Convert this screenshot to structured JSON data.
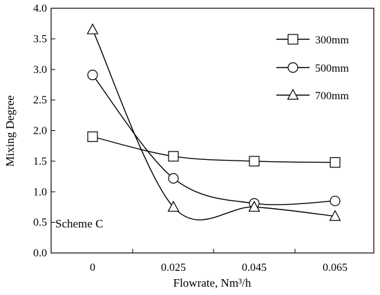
{
  "chart_data": {
    "type": "line",
    "xlabel": "Flowrate, Nm³/h",
    "ylabel": "Mixing Degree",
    "categories": [
      "0",
      "0.025",
      "0.045",
      "0.065"
    ],
    "ylim": [
      0,
      4
    ],
    "yticks": [
      "0.0",
      "0.5",
      "1.0",
      "1.5",
      "2.0",
      "2.5",
      "3.0",
      "3.5",
      "4.0"
    ],
    "grid": false,
    "legend_position": "top-right",
    "annotation": "Scheme C",
    "series": [
      {
        "name": "300mm",
        "marker": "square",
        "values": [
          1.9,
          1.58,
          1.5,
          1.48
        ]
      },
      {
        "name": "500mm",
        "marker": "circle",
        "values": [
          2.91,
          1.22,
          0.81,
          0.85
        ]
      },
      {
        "name": "700mm",
        "marker": "triangle",
        "values": [
          3.65,
          0.75,
          0.75,
          0.6
        ]
      }
    ]
  }
}
